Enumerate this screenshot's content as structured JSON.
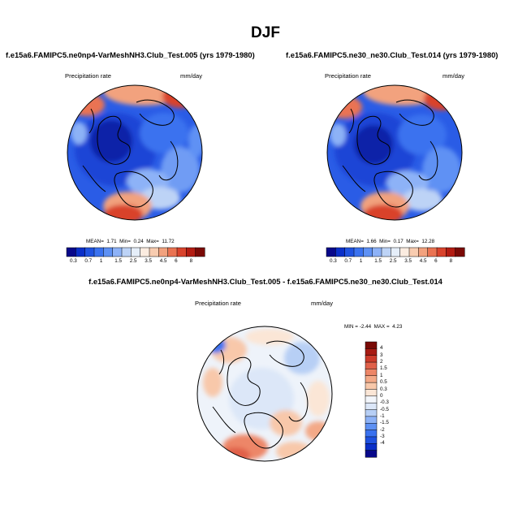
{
  "title": "DJF",
  "colors": {
    "ramp": [
      "#08088a",
      "#0a2fc8",
      "#1f52e0",
      "#3a72ef",
      "#5e91f4",
      "#8db2f7",
      "#bdd3f6",
      "#e5eef9",
      "#fbece0",
      "#f8ccb0",
      "#f2a27e",
      "#ea7352",
      "#d9432c",
      "#b31c12",
      "#7a0a06"
    ],
    "diff_ramp": [
      "#08088a",
      "#0a2fc8",
      "#1f52e0",
      "#3a72ef",
      "#5e91f4",
      "#8db2f7",
      "#b7cff5",
      "#dce7f8",
      "#f3f6fb",
      "#fbe6d6",
      "#f8c8aa",
      "#f3a987",
      "#ed8667",
      "#e0614a",
      "#cc3b2b",
      "#a71b13",
      "#7a0a06"
    ]
  },
  "panel_left": {
    "case_title": "f.e15a6.FAMIPC5.ne0np4-VarMeshNH3.Club_Test.005 (yrs 1979-1980)",
    "variable": "Precipitation rate",
    "units": "mm/day",
    "stats": {
      "mean_label": "MEAN=",
      "mean": "1.71",
      "min_label": "Min=",
      "min": "0.24",
      "max_label": "Max=",
      "max": "11.72"
    },
    "colorbar_ticks": [
      "0.3",
      "0.7",
      "1",
      "1.5",
      "2.5",
      "3.5",
      "4.5",
      "6",
      "8"
    ]
  },
  "panel_right": {
    "case_title": "f.e15a6.FAMIPC5.ne30_ne30.Club_Test.014 (yrs 1979-1980)",
    "variable": "Precipitation rate",
    "units": "mm/day",
    "stats": {
      "mean_label": "MEAN=",
      "mean": "1.66",
      "min_label": "Min=",
      "min": "0.17",
      "max_label": "Max=",
      "max": "12.28"
    },
    "colorbar_ticks": [
      "0.3",
      "0.7",
      "1",
      "1.5",
      "2.5",
      "3.5",
      "4.5",
      "6",
      "8"
    ]
  },
  "panel_diff": {
    "case_title": "f.e15a6.FAMIPC5.ne0np4-VarMeshNH3.Club_Test.005 - f.e15a6.FAMIPC5.ne30_ne30.Club_Test.014",
    "variable": "Precipitation rate",
    "units": "mm/day",
    "stats": {
      "min_label": "MIN =",
      "min": "-2.44",
      "max_label": "MAX =",
      "max": "4.23"
    },
    "colorbar_ticks": [
      "4",
      "3",
      "2",
      "1.5",
      "1",
      "0.5",
      "0.3",
      "0",
      "-0.3",
      "-0.5",
      "-1",
      "-1.5",
      "-2",
      "-3",
      "-4"
    ]
  }
}
